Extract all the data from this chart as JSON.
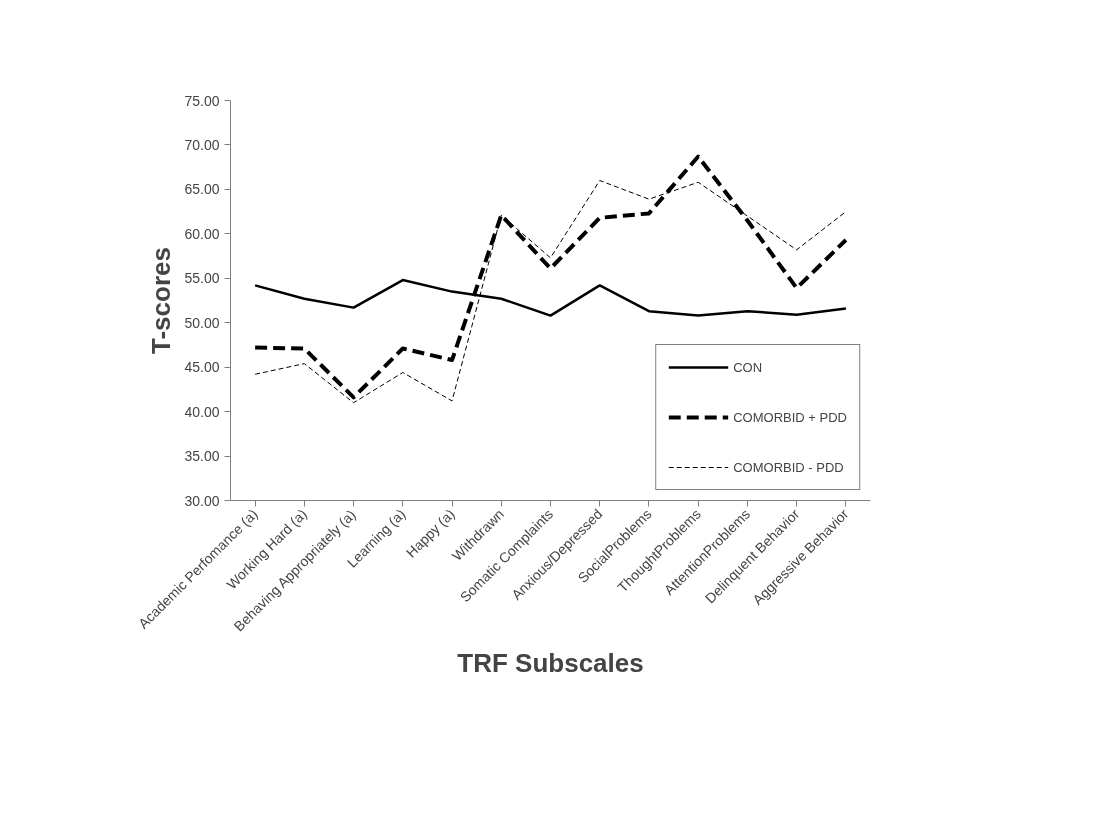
{
  "chart_data": {
    "type": "line",
    "xlabel": "TRF Subscales",
    "ylabel": "T-scores",
    "categories": [
      "Academic Perfomance (a)",
      "Working Hard (a)",
      "Behaving Appropriately (a)",
      "Learning (a)",
      "Happy (a)",
      "Withdrawn",
      "Somatic Complaints",
      "Anxious/Depressed",
      "SocialProblems",
      "ThoughtProblems",
      "AttentionProblems",
      "Delinquent Behavior",
      "Aggressive Behavior"
    ],
    "series": [
      {
        "name": "CON",
        "color": "#000000",
        "line_style": "solid",
        "values": [
          54.2,
          52.7,
          51.7,
          54.8,
          53.5,
          52.7,
          50.8,
          54.2,
          51.3,
          50.8,
          51.3,
          50.9,
          51.6
        ]
      },
      {
        "name": "COMORBID + PDD",
        "color": "#000000",
        "line_style": "dashed",
        "values": [
          47.2,
          47.1,
          41.6,
          47.1,
          45.8,
          62.1,
          56.1,
          61.8,
          62.3,
          68.7,
          61.5,
          53.9,
          59.3
        ]
      },
      {
        "name": "COMORBID - PDD",
        "color": "#000000",
        "line_style": "dotted",
        "values": [
          44.2,
          45.4,
          41.0,
          44.4,
          41.2,
          62.1,
          57.3,
          66.0,
          63.9,
          65.8,
          62.0,
          58.2,
          62.5
        ]
      }
    ],
    "ylim": [
      30,
      75
    ],
    "yticks": [
      {
        "value": 30,
        "label": "30.00"
      },
      {
        "value": 35,
        "label": "35.00"
      },
      {
        "value": 40,
        "label": "40.00"
      },
      {
        "value": 45,
        "label": "45.00"
      },
      {
        "value": 50,
        "label": "50.00"
      },
      {
        "value": 55,
        "label": "55.00"
      },
      {
        "value": 60,
        "label": "60.00"
      },
      {
        "value": 65,
        "label": "65.00"
      },
      {
        "value": 70,
        "label": "70.00"
      },
      {
        "value": 75,
        "label": "75.00"
      }
    ],
    "legend": "bottom right",
    "grid": false
  }
}
